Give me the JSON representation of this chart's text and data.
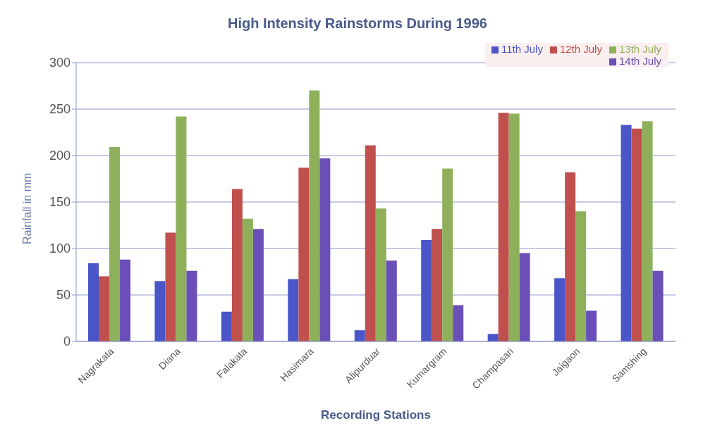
{
  "chart_data": {
    "type": "bar",
    "title": "High Intensity Rainstorms During 1996",
    "xlabel": "Recording Stations",
    "ylabel": "Rainfall in mm",
    "categories": [
      "Nagrakata",
      "Diana",
      "Falakata",
      "Hasimara",
      "Alipurduar",
      "Kumargram",
      "Champasari",
      "Jaigaon",
      "Samshing"
    ],
    "series": [
      {
        "name": "11th July",
        "color": "#4a55c8",
        "values": [
          84,
          65,
          32,
          67,
          12,
          109,
          8,
          68,
          233
        ]
      },
      {
        "name": "12th July",
        "color": "#c0504d",
        "values": [
          70,
          117,
          164,
          187,
          211,
          121,
          246,
          182,
          229
        ]
      },
      {
        "name": "13th July",
        "color": "#8fb05a",
        "values": [
          209,
          242,
          132,
          270,
          143,
          186,
          245,
          140,
          237
        ]
      },
      {
        "name": "14th July",
        "color": "#6a4fb8",
        "values": [
          88,
          76,
          121,
          197,
          87,
          39,
          95,
          33,
          76
        ]
      }
    ],
    "ylim": [
      0,
      300
    ],
    "yticks": [
      0,
      50,
      100,
      150,
      200,
      250,
      300
    ],
    "grid": "y",
    "legend": "top right"
  }
}
